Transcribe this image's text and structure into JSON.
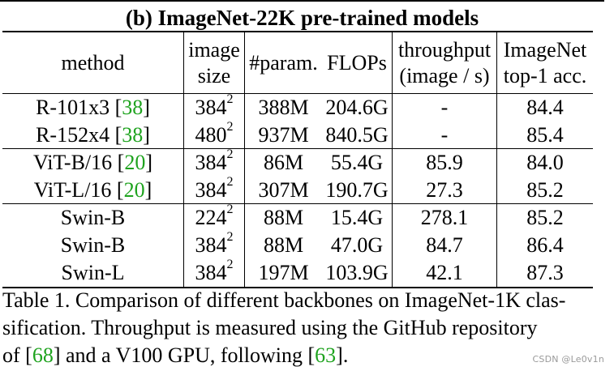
{
  "table": {
    "title": "(b) ImageNet-22K pre-trained models",
    "headers": {
      "method": "method",
      "size_line1": "image",
      "size_line2": "size",
      "param": "#param.",
      "flops": "FLOPs",
      "thru_line1": "throughput",
      "thru_line2": "(image / s)",
      "acc_line1": "ImageNet",
      "acc_line2": "top-1 acc."
    },
    "rows": [
      {
        "method": "R-101x3",
        "cite": "38",
        "size_base": "384",
        "size_exp": "2",
        "param": "388M",
        "flops": "204.6G",
        "throughput": "-",
        "acc": "84.4"
      },
      {
        "method": "R-152x4",
        "cite": "38",
        "size_base": "480",
        "size_exp": "2",
        "param": "937M",
        "flops": "840.5G",
        "throughput": "-",
        "acc": "85.4"
      },
      {
        "method": "ViT-B/16",
        "cite": "20",
        "size_base": "384",
        "size_exp": "2",
        "param": "86M",
        "flops": "55.4G",
        "throughput": "85.9",
        "acc": "84.0"
      },
      {
        "method": "ViT-L/16",
        "cite": "20",
        "size_base": "384",
        "size_exp": "2",
        "param": "307M",
        "flops": "190.7G",
        "throughput": "27.3",
        "acc": "85.2"
      },
      {
        "method": "Swin-B",
        "cite": "",
        "size_base": "224",
        "size_exp": "2",
        "param": "88M",
        "flops": "15.4G",
        "throughput": "278.1",
        "acc": "85.2"
      },
      {
        "method": "Swin-B",
        "cite": "",
        "size_base": "384",
        "size_exp": "2",
        "param": "88M",
        "flops": "47.0G",
        "throughput": "84.7",
        "acc": "86.4"
      },
      {
        "method": "Swin-L",
        "cite": "",
        "size_base": "384",
        "size_exp": "2",
        "param": "197M",
        "flops": "103.9G",
        "throughput": "42.1",
        "acc": "87.3"
      }
    ]
  },
  "caption": {
    "line1": "Table 1. Comparison of different backbones on ImageNet-1K clas-",
    "line2": "sification.  Throughput is measured using the GitHub repository",
    "line3_a": "of [",
    "line3_cite1": "68",
    "line3_b": "] and a V100 GPU, following [",
    "line3_cite2": "63",
    "line3_c": "]."
  },
  "watermark": "CSDN @Le0v1n",
  "colors": {
    "citation": "#1fa31f",
    "watermark": "#9a9a9a"
  }
}
